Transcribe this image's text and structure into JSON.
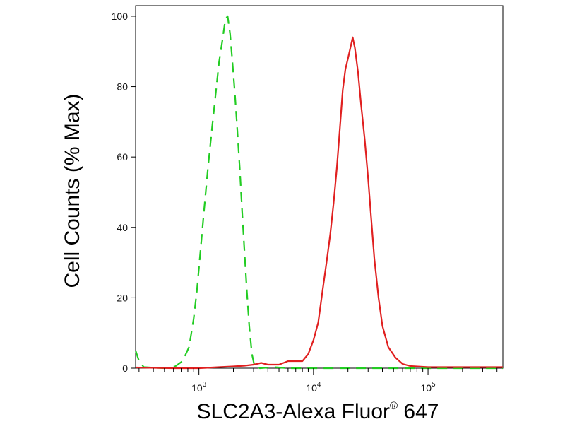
{
  "chart_data": {
    "type": "line",
    "xlabel_main": "SLC2A3-Alexa Fluor",
    "xlabel_super": "®",
    "xlabel_tail": " 647",
    "ylabel": "Cell Counts (% Max)",
    "xscale": "log",
    "xlim": [
      280,
      450000
    ],
    "ylim": [
      0,
      103
    ],
    "grid": false,
    "x_ticks": [
      {
        "value": 1000,
        "base": "10",
        "exp": "3"
      },
      {
        "value": 10000,
        "base": "10",
        "exp": "4"
      },
      {
        "value": 100000,
        "base": "10",
        "exp": "5"
      }
    ],
    "y_ticks": [
      {
        "value": 0,
        "label": "0"
      },
      {
        "value": 20,
        "label": "20"
      },
      {
        "value": 40,
        "label": "40"
      },
      {
        "value": 60,
        "label": "60"
      },
      {
        "value": 80,
        "label": "80"
      },
      {
        "value": 100,
        "label": "100"
      }
    ],
    "series": [
      {
        "color": "#22cc22",
        "dash": "dashed",
        "points": [
          [
            280,
            5
          ],
          [
            300,
            2
          ],
          [
            330,
            0.3
          ],
          [
            500,
            0
          ],
          [
            620,
            0.5
          ],
          [
            720,
            2
          ],
          [
            820,
            6
          ],
          [
            900,
            14
          ],
          [
            960,
            22
          ],
          [
            1030,
            33
          ],
          [
            1110,
            45
          ],
          [
            1200,
            57
          ],
          [
            1300,
            68
          ],
          [
            1400,
            78
          ],
          [
            1500,
            87
          ],
          [
            1600,
            93
          ],
          [
            1700,
            99
          ],
          [
            1780,
            100
          ],
          [
            1870,
            95
          ],
          [
            1960,
            87
          ],
          [
            2060,
            78
          ],
          [
            2160,
            68
          ],
          [
            2270,
            57
          ],
          [
            2390,
            44
          ],
          [
            2500,
            33
          ],
          [
            2620,
            22
          ],
          [
            2750,
            12
          ],
          [
            2900,
            4
          ],
          [
            3050,
            0.8
          ],
          [
            3400,
            0
          ],
          [
            4500,
            0.3
          ],
          [
            6000,
            0
          ],
          [
            450000,
            0
          ]
        ]
      },
      {
        "color": "#e02020",
        "dash": "solid",
        "points": [
          [
            280,
            0.2
          ],
          [
            600,
            0
          ],
          [
            1000,
            0
          ],
          [
            1500,
            0.3
          ],
          [
            2000,
            0.5
          ],
          [
            2500,
            0.7
          ],
          [
            3000,
            1
          ],
          [
            3500,
            1.5
          ],
          [
            4000,
            1
          ],
          [
            5000,
            1
          ],
          [
            6000,
            2
          ],
          [
            7000,
            2
          ],
          [
            8000,
            2
          ],
          [
            9000,
            4
          ],
          [
            10000,
            8
          ],
          [
            11000,
            13
          ],
          [
            12000,
            22
          ],
          [
            13000,
            30
          ],
          [
            14000,
            38
          ],
          [
            15000,
            47
          ],
          [
            16000,
            57
          ],
          [
            17000,
            68
          ],
          [
            18000,
            79
          ],
          [
            19000,
            85
          ],
          [
            20000,
            88
          ],
          [
            21000,
            91
          ],
          [
            22000,
            94
          ],
          [
            23000,
            91
          ],
          [
            24500,
            84
          ],
          [
            26000,
            75
          ],
          [
            28000,
            65
          ],
          [
            30000,
            54
          ],
          [
            32000,
            42
          ],
          [
            34000,
            31
          ],
          [
            37000,
            20
          ],
          [
            40000,
            12
          ],
          [
            45000,
            6
          ],
          [
            52000,
            3
          ],
          [
            60000,
            1.2
          ],
          [
            70000,
            0.6
          ],
          [
            100000,
            0.3
          ],
          [
            450000,
            0.3
          ]
        ]
      }
    ]
  }
}
